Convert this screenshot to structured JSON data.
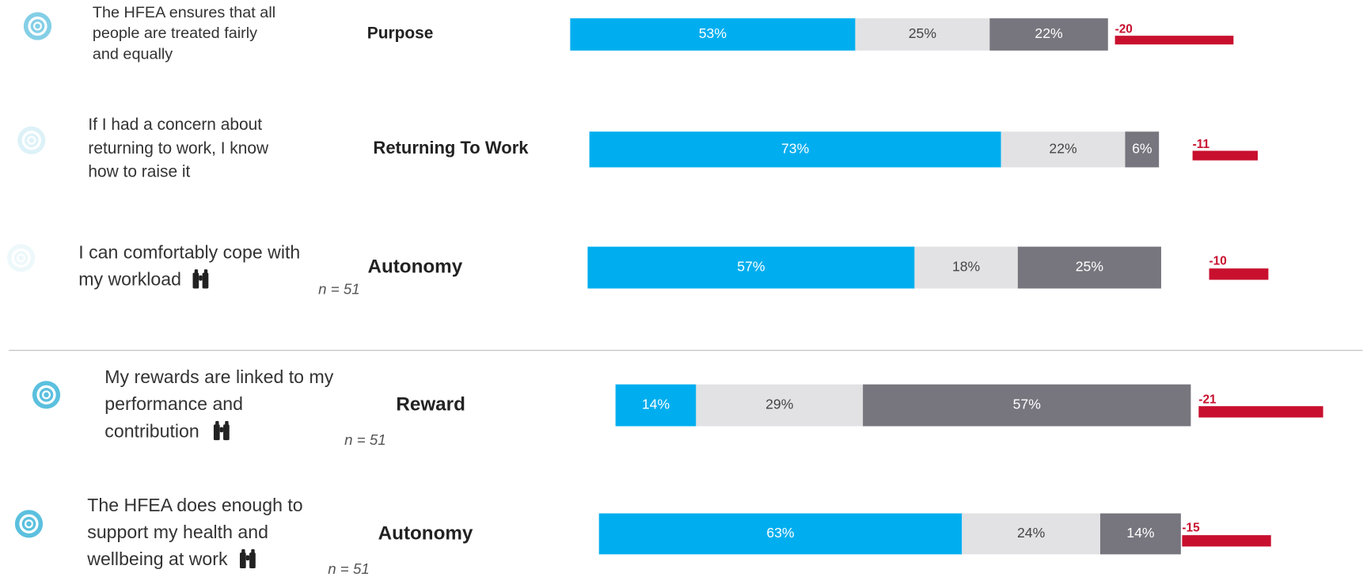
{
  "chart_data": {
    "type": "stacked-bar",
    "colors": [
      "#00aeef",
      "#e2e2e4",
      "#77767e"
    ],
    "label_colors": [
      "#ffffff",
      "#444444",
      "#ffffff"
    ],
    "delta_color": "#c8102e",
    "rows": [
      {
        "statement": [
          "The HFEA ensures that all",
          "people are treated fairly",
          "and equally"
        ],
        "category": "Purpose",
        "values": [
          53,
          25,
          22
        ],
        "value_labels": [
          "53%",
          "25%",
          "22%"
        ],
        "delta": -20
      },
      {
        "statement": [
          "If I had a concern about",
          "returning to work, I know",
          "how to raise it"
        ],
        "category": "Returning To Work",
        "values": [
          73,
          22,
          6
        ],
        "value_labels": [
          "73%",
          "22%",
          "6%"
        ],
        "delta": -11
      },
      {
        "statement": [
          "I can comfortably cope with",
          "my workload"
        ],
        "category": "Autonomy",
        "n": "n = 51",
        "values": [
          57,
          18,
          25
        ],
        "value_labels": [
          "57%",
          "18%",
          "25%"
        ],
        "delta": -10
      },
      {
        "statement": [
          "My rewards are linked to my",
          "performance and",
          "contribution"
        ],
        "category": "Reward",
        "n": "n = 51",
        "values": [
          14,
          29,
          57
        ],
        "value_labels": [
          "14%",
          "29%",
          "57%"
        ],
        "delta": -21
      },
      {
        "statement": [
          "The HFEA does enough to",
          "support my health and",
          "wellbeing at work"
        ],
        "category": "Autonomy",
        "n": "n = 51",
        "values": [
          63,
          24,
          14
        ],
        "value_labels": [
          "63%",
          "24%",
          "14%"
        ],
        "delta": -15
      }
    ]
  }
}
